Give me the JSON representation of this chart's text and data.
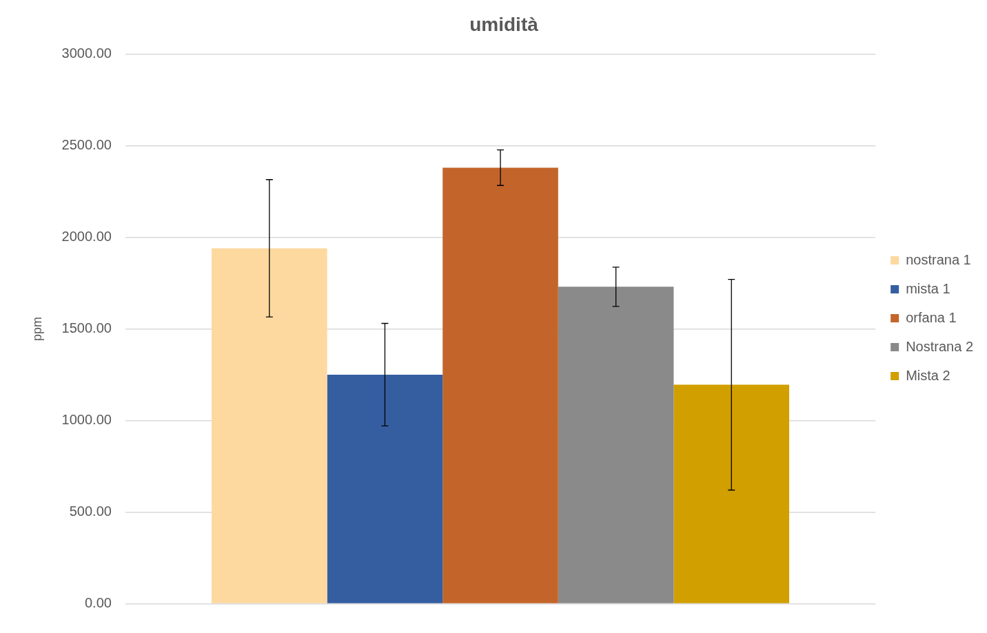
{
  "chart_data": {
    "type": "bar",
    "title": "umidità",
    "ylabel": "ppm",
    "categories": [
      null
    ],
    "series": [
      {
        "name": "nostrana 1",
        "color": "#fdd9a0",
        "values": [
          1940
        ],
        "errors": [
          375
        ]
      },
      {
        "name": "mista 1",
        "color": "#355ea1",
        "values": [
          1250
        ],
        "errors": [
          280
        ]
      },
      {
        "name": "orfana 1",
        "color": "#c3652a",
        "values": [
          2380
        ],
        "errors": [
          97
        ]
      },
      {
        "name": "Nostrana 2",
        "color": "#8a8a8a",
        "values": [
          1730
        ],
        "errors": [
          107
        ]
      },
      {
        "name": "Mista 2",
        "color": "#d19f00",
        "values": [
          1195
        ],
        "errors": [
          575
        ]
      }
    ],
    "ylim": [
      0,
      3000
    ],
    "yticks": [
      {
        "value": 0,
        "label": "0.00"
      },
      {
        "value": 500,
        "label": "500.00"
      },
      {
        "value": 1000,
        "label": "1000.00"
      },
      {
        "value": 1500,
        "label": "1500.00"
      },
      {
        "value": 2000,
        "label": "2000.00"
      },
      {
        "value": 2500,
        "label": "2500.00"
      },
      {
        "value": 3000,
        "label": "3000.00"
      }
    ],
    "grid": "y",
    "legend": "right"
  }
}
